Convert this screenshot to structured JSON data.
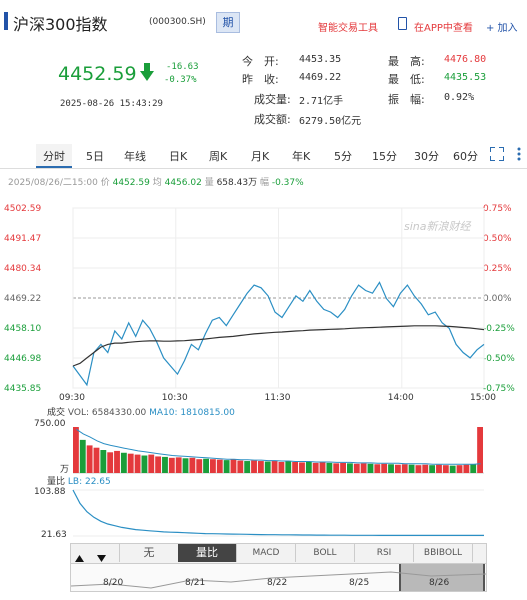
{
  "header": {
    "title": "沪深300指数",
    "code": "(000300.SH)",
    "badge": "期",
    "links": [
      "智能交易工具",
      "在APP中查看",
      "+ 加入"
    ]
  },
  "quote": {
    "price": "4452.59",
    "change": "-16.63",
    "change_pct": "-0.37%",
    "datetime": "2025-08-26 15:43:29",
    "open_label": "今　开:",
    "open": "4453.35",
    "prev_label": "昨　收:",
    "prev": "4469.22",
    "vol_label": "成交量:",
    "vol": "2.71亿手",
    "amt_label": "成交额:",
    "amt": "6279.50亿元",
    "high_label": "最　高:",
    "high": "4476.80",
    "low_label": "最　低:",
    "low": "4435.53",
    "amp_label": "振　幅:",
    "amp": "0.92%"
  },
  "tabs": [
    "分时",
    "5日",
    "年线",
    "日K",
    "周K",
    "月K",
    "年K",
    "5分",
    "15分",
    "30分",
    "60分"
  ],
  "active_tab": "分时",
  "info_bar": {
    "date": "2025/08/26/二15:00",
    "price_label": "价",
    "price": "4452.59",
    "avg_label": "均",
    "avg": "4456.02",
    "vol_label": "量",
    "vol": "658.43万",
    "amp_label": "幅",
    "amp": "-0.37%"
  },
  "watermark": "sina新浪财经",
  "chart_data": {
    "type": "line",
    "y_ticks_left": [
      "4502.59",
      "4491.47",
      "4480.34",
      "4469.22",
      "4458.10",
      "4446.98",
      "4435.85"
    ],
    "y_ticks_right": [
      "0.75%",
      "0.50%",
      "0.25%",
      "0.00%",
      "-0.25%",
      "-0.50%",
      "-0.75%"
    ],
    "x_ticks": [
      "09:30",
      "10:30",
      "11:30",
      "14:00",
      "15:00"
    ],
    "ylim": [
      4435.85,
      4502.59
    ],
    "prev_close": 4469.22,
    "series": [
      {
        "values": [
          4444.0,
          4440.5,
          4437.0,
          4449.0,
          4452.0,
          4449.0,
          4457.0,
          4454.0,
          4460.0,
          4455.0,
          4461.0,
          4458.0,
          4453.0,
          4447.0,
          4444.0,
          4441.0,
          4446.0,
          4452.0,
          4450.0,
          4456.0,
          4461.0,
          4462.0,
          4459.0,
          4463.0,
          4467.0,
          4471.0,
          4474.0,
          4473.0,
          4470.0,
          4464.0,
          4462.0,
          4466.0,
          4470.0,
          4468.0,
          4472.0,
          4468.0,
          4465.0,
          4464.0,
          4462.0,
          4465.0,
          4470.0,
          4474.0,
          4472.0,
          4471.0,
          4475.0,
          4469.0,
          4466.0,
          4471.0,
          4474.0,
          4470.0,
          4467.0,
          4463.0,
          4464.0,
          4460.0,
          4458.0,
          4452.0,
          4449.0,
          4447.0,
          4450.0,
          4452.0
        ]
      },
      {
        "values": [
          4444.0,
          4445.0,
          4447.0,
          4449.0,
          4451.0,
          4452.0,
          4452.5,
          4452.5,
          4452.8,
          4453.0,
          4453.2,
          4453.3,
          4453.3,
          4453.2,
          4453.2,
          4453.3,
          4453.4,
          4453.6,
          4453.8,
          4454.0,
          4454.3,
          4454.6,
          4454.8,
          4455.0,
          4455.3,
          4455.6,
          4455.9,
          4456.1,
          4456.3,
          4456.5,
          4456.6,
          4456.8,
          4457.0,
          4457.1,
          4457.3,
          4457.4,
          4457.5,
          4457.6,
          4457.7,
          4457.8,
          4458.0,
          4458.1,
          4458.2,
          4458.3,
          4458.4,
          4458.5,
          4458.6,
          4458.7,
          4458.8,
          4458.9,
          4458.9,
          4458.9,
          4458.9,
          4458.8,
          4458.7,
          4458.5,
          4458.3,
          4458.1,
          4457.8,
          4457.5
        ]
      }
    ]
  },
  "volume": {
    "label": "成交",
    "vol_text": "VOL: 6584330.00",
    "ma_text": "MA10: 1810815.00",
    "top_tick": "750.00",
    "unit": "万",
    "values": [
      100,
      72,
      60,
      55,
      50,
      45,
      48,
      44,
      42,
      40,
      38,
      40,
      36,
      35,
      33,
      34,
      32,
      33,
      30,
      31,
      30,
      29,
      28,
      30,
      27,
      26,
      27,
      26,
      25,
      26,
      24,
      25,
      24,
      23,
      24,
      22,
      23,
      22,
      21,
      22,
      21,
      20,
      21,
      20,
      19,
      20,
      19,
      18,
      19,
      18,
      17,
      18,
      17,
      18,
      17,
      16,
      17,
      18,
      19,
      100
    ],
    "ma": [
      95,
      85,
      78,
      70,
      64,
      60,
      57,
      54,
      51,
      48,
      46,
      44,
      42,
      40,
      38,
      37,
      36,
      35,
      34,
      33,
      32,
      31,
      30,
      30,
      29,
      29,
      28,
      28,
      27,
      27,
      26,
      26,
      25,
      25,
      25,
      24,
      24,
      24,
      23,
      23,
      23,
      22,
      22,
      22,
      21,
      21,
      21,
      21,
      20,
      20,
      20,
      20,
      19,
      19,
      19,
      19,
      19,
      19,
      19,
      20
    ]
  },
  "lb": {
    "label": "量比",
    "text": "LB: 22.65",
    "top_tick": "103.88",
    "bottom_tick": "21.63",
    "values": [
      103.88,
      80,
      65,
      55,
      48,
      43,
      40,
      37,
      35,
      33,
      32,
      31,
      30,
      29,
      28.5,
      28,
      27.5,
      27,
      26.5,
      26,
      25.8,
      25.5,
      25.2,
      25,
      24.8,
      24.6,
      24.4,
      24.2,
      24,
      23.9,
      23.8,
      23.7,
      23.6,
      23.5,
      23.4,
      23.3,
      23.2,
      23.1,
      23.05,
      23,
      22.95,
      22.9,
      22.85,
      22.8,
      22.78,
      22.76,
      22.74,
      22.72,
      22.7,
      22.69,
      22.68,
      22.67,
      22.66,
      22.66,
      22.65,
      22.65,
      22.65,
      22.65,
      22.65,
      22.65
    ]
  },
  "indicators": [
    "无",
    "量比",
    "MACD",
    "BOLL",
    "RSI",
    "BBIBOLL"
  ],
  "active_indicator": "量比",
  "nav_dates": [
    "8/20",
    "8/21",
    "8/22",
    "8/25",
    "8/26"
  ],
  "colors": {
    "red": "#e4393c",
    "green": "#1a9e3a",
    "line": "#2b8fc4",
    "avg": "#333333",
    "tab_active": "#2b6cb0"
  }
}
